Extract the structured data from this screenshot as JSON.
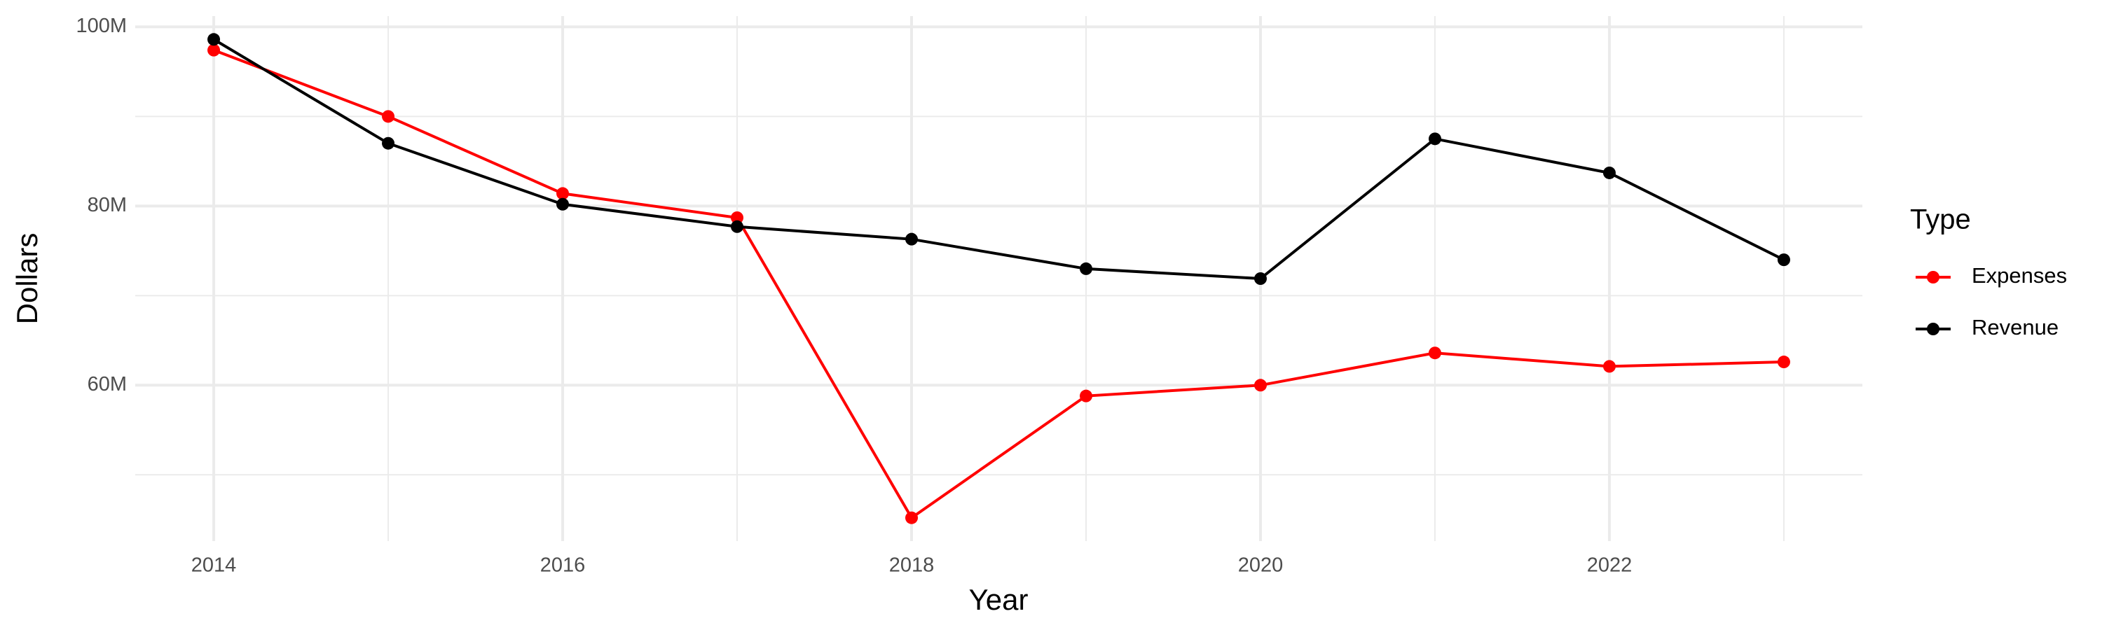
{
  "chart_data": {
    "type": "line",
    "x_label": "Year",
    "y_label": "Dollars",
    "x": [
      2014,
      2015,
      2016,
      2017,
      2018,
      2019,
      2020,
      2021,
      2022,
      2023
    ],
    "series": [
      {
        "name": "Expenses",
        "color": "#ff0000",
        "values": [
          97400000,
          90000000,
          81400000,
          78700000,
          45200000,
          58800000,
          60000000,
          63600000,
          62100000,
          62600000
        ]
      },
      {
        "name": "Revenue",
        "color": "#000000",
        "values": [
          98600000,
          87000000,
          80200000,
          77700000,
          76300000,
          73000000,
          71900000,
          87500000,
          83700000,
          74000000
        ]
      }
    ],
    "xlim": [
      2013.55,
      2023.45
    ],
    "xticks": [
      2014,
      2016,
      2018,
      2020,
      2022
    ],
    "ylim": [
      42600000,
      101200000
    ],
    "yticks": [
      {
        "value": 60000000,
        "label": "60M"
      },
      {
        "value": 80000000,
        "label": "80M"
      },
      {
        "value": 100000000,
        "label": "100M"
      }
    ],
    "grid": true,
    "minor_grid": true,
    "legend_title": "Type",
    "legend_position": "right"
  }
}
